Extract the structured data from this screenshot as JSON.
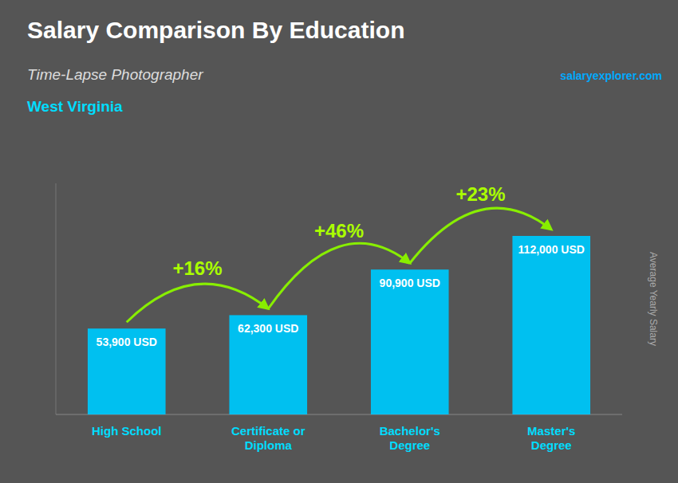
{
  "chart_data": {
    "type": "bar",
    "title": "Salary Comparison By Education",
    "subtitle": "Time-Lapse Photographer",
    "location": "West Virginia",
    "ylabel": "Average Yearly Salary",
    "source": "salaryexplorer.com",
    "categories": [
      "High School",
      "Certificate or\nDiploma",
      "Bachelor's\nDegree",
      "Master's\nDegree"
    ],
    "values": [
      53900,
      62300,
      90900,
      112000
    ],
    "value_labels": [
      "53,900 USD",
      "62,300 USD",
      "90,900 USD",
      "112,000 USD"
    ],
    "annotations": [
      "+16%",
      "+46%",
      "+23%"
    ],
    "color": "#00c0f0",
    "ylim": [
      0,
      145000
    ],
    "data_labels": true,
    "tick_labels": "x",
    "grid": false
  }
}
